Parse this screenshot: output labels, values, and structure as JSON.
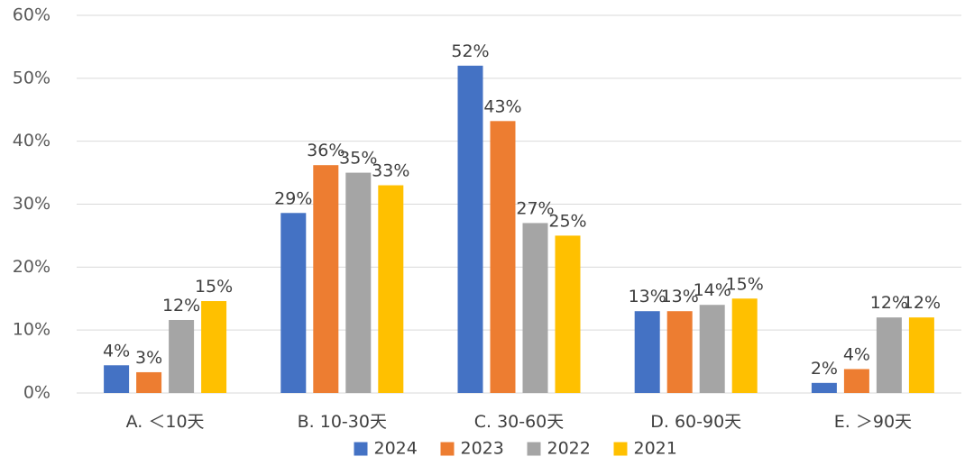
{
  "chart_data": {
    "type": "bar",
    "title": "",
    "xlabel": "",
    "ylabel": "",
    "ylim": [
      0,
      60
    ],
    "yticks": [
      "0%",
      "10%",
      "20%",
      "30%",
      "40%",
      "50%",
      "60%"
    ],
    "categories": [
      "A. ＜10天",
      "B. 10-30天",
      "C. 30-60天",
      "D. 60-90天",
      "E. ＞90天"
    ],
    "series": [
      {
        "name": "2024",
        "color": "#4472C4",
        "values": [
          4.4,
          28.6,
          52,
          13,
          1.6
        ],
        "labels": [
          "4%",
          "29%",
          "52%",
          "13%",
          "2%"
        ]
      },
      {
        "name": "2023",
        "color": "#ED7D31",
        "values": [
          3.3,
          36.2,
          43.2,
          13,
          3.8
        ],
        "labels": [
          "3%",
          "36%",
          "43%",
          "13%",
          "4%"
        ]
      },
      {
        "name": "2022",
        "color": "#A5A5A5",
        "values": [
          11.6,
          35,
          27,
          14,
          12
        ],
        "labels": [
          "12%",
          "35%",
          "27%",
          "14%",
          "12%"
        ]
      },
      {
        "name": "2021",
        "color": "#FFC000",
        "values": [
          14.6,
          33,
          25,
          15,
          12
        ],
        "labels": [
          "15%",
          "33%",
          "25%",
          "15%",
          "12%"
        ]
      }
    ],
    "grid": true,
    "legend": "bottom"
  }
}
